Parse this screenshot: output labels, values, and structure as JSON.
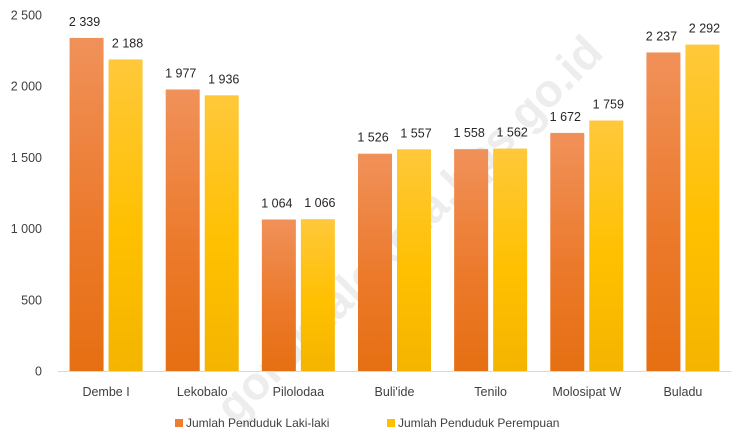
{
  "watermark": "gorontalokota.bps.go.id",
  "chart_data": {
    "type": "bar",
    "title": "",
    "xlabel": "",
    "ylabel": "",
    "categories": [
      "Dembe I",
      "Lekobalo",
      "Pilolodaa",
      "Buli'ide",
      "Tenilo",
      "Molosipat W",
      "Buladu"
    ],
    "series": [
      {
        "name": "Jumlah Penduduk Laki-laki",
        "values": [
          2339,
          1977,
          1064,
          1526,
          1558,
          1672,
          2237
        ],
        "labels": [
          "2 339",
          "1 977",
          "1 064",
          "1 526",
          "1 558",
          "1 672",
          "2 237"
        ],
        "color": "#ed7d31"
      },
      {
        "name": "Jumlah Penduduk Perempuan",
        "values": [
          2188,
          1936,
          1066,
          1557,
          1562,
          1759,
          2292
        ],
        "labels": [
          "2 188",
          "1 936",
          "1 066",
          "1 557",
          "1 562",
          "1 759",
          "2 292"
        ],
        "color": "#ffc000"
      }
    ],
    "ylim": [
      0,
      2500
    ],
    "yticks": [
      0,
      500,
      1000,
      1500,
      2000,
      2500
    ],
    "ytick_labels": [
      "0",
      "500",
      "1 000",
      "1 500",
      "2 000",
      "2 500"
    ],
    "grid": false,
    "legend_position": "bottom"
  }
}
